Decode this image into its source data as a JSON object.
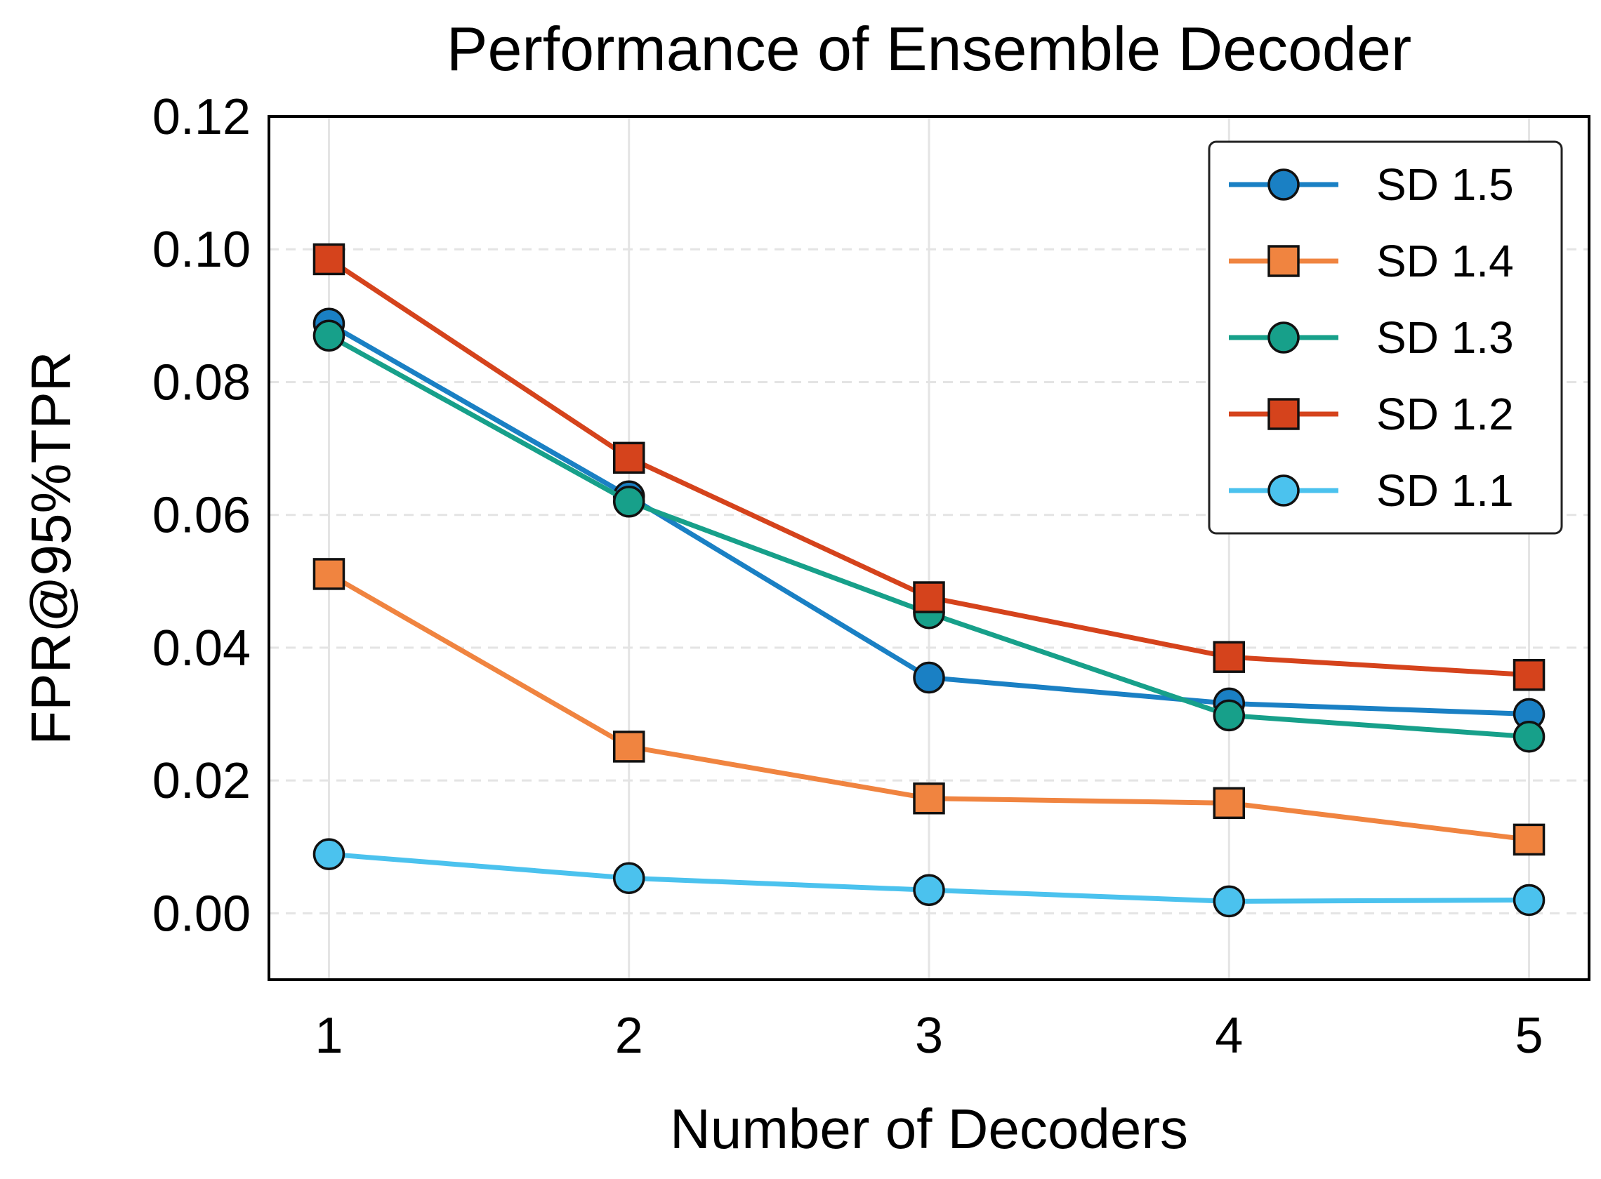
{
  "chart_data": {
    "type": "line",
    "title": "Performance of Ensemble Decoder",
    "xlabel": "Number of Decoders",
    "ylabel": "FPR@95%TPR",
    "x": [
      1,
      2,
      3,
      4,
      5
    ],
    "x_tick_labels": [
      "1",
      "2",
      "3",
      "4",
      "5"
    ],
    "xlim": [
      0.8,
      5.2
    ],
    "ylim": [
      -0.01,
      0.12
    ],
    "y_ticks": [
      0.0,
      0.02,
      0.04,
      0.06,
      0.08,
      0.1,
      0.12
    ],
    "y_tick_labels": [
      "0.00",
      "0.02",
      "0.04",
      "0.06",
      "0.08",
      "0.10",
      "0.12"
    ],
    "grid": true,
    "legend_position": "top-right",
    "series": [
      {
        "name": "SD 1.5",
        "color": "#1a80c4",
        "marker": "circle",
        "values": [
          0.0888,
          0.0628,
          0.0355,
          0.0316,
          0.03
        ]
      },
      {
        "name": "SD 1.4",
        "color": "#f08440",
        "marker": "square",
        "values": [
          0.0511,
          0.0251,
          0.0173,
          0.0166,
          0.0111
        ]
      },
      {
        "name": "SD 1.3",
        "color": "#17a08a",
        "marker": "circle",
        "values": [
          0.087,
          0.062,
          0.0452,
          0.0298,
          0.0266
        ]
      },
      {
        "name": "SD 1.2",
        "color": "#d5431c",
        "marker": "square",
        "values": [
          0.0985,
          0.0686,
          0.0476,
          0.0386,
          0.0359
        ]
      },
      {
        "name": "SD 1.1",
        "color": "#4bc2ee",
        "marker": "circle",
        "values": [
          0.0089,
          0.0053,
          0.0035,
          0.0018,
          0.002
        ]
      }
    ]
  }
}
